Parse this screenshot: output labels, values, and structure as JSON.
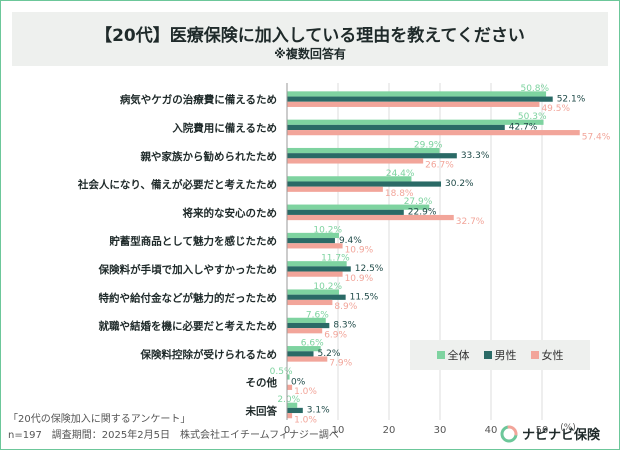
{
  "header": {
    "title": "【20代】医療保険に加入している理由を教えてください",
    "subtitle": "※複数回答有"
  },
  "legend_items": [
    {
      "label": "全体",
      "color": "#7ed3a0"
    },
    {
      "label": "男性",
      "color": "#2a6a66"
    },
    {
      "label": "女性",
      "color": "#f2a59a"
    }
  ],
  "footer": {
    "survey": "「20代の保険加入に関するアンケート」",
    "details": "n=197　調査期間：2025年2月5日　株式会社エイチームフィナジー調べ"
  },
  "logo": {
    "text": "ナビナビ保険"
  },
  "chart_data": {
    "type": "bar",
    "orientation": "horizontal",
    "categories": [
      "病気やケガの治療費に備えるため",
      "入院費用に備えるため",
      "親や家族から勧められたため",
      "社会人になり、備えが必要だと考えたため",
      "将来的な安心のため",
      "貯蓄型商品として魅力を感じたため",
      "保険料が手頃で加入しやすかったため",
      "特約や給付金などが魅力的だったため",
      "就職や結婚を機に必要だと考えたため",
      "保険料控除が受けられるため",
      "その他",
      "未回答"
    ],
    "series": [
      {
        "name": "全体",
        "color": "#7ed3a0",
        "values": [
          50.8,
          50.3,
          29.9,
          24.4,
          27.9,
          10.2,
          11.7,
          10.2,
          7.6,
          6.6,
          0.5,
          2.0
        ],
        "labels": [
          "50.8%",
          "50.3%",
          "29.9%",
          "24.4%",
          "27.9%",
          "10.2%",
          "11.7%",
          "10.2%",
          "7.6%",
          "6.6%",
          "0.5%",
          "2.0%"
        ]
      },
      {
        "name": "男性",
        "color": "#2a6a66",
        "values": [
          52.1,
          42.7,
          33.3,
          30.2,
          22.9,
          9.4,
          12.5,
          11.5,
          8.3,
          5.2,
          0,
          3.1
        ],
        "labels": [
          "52.1%",
          "42.7%",
          "33.3%",
          "30.2%",
          "22.9%",
          "9.4%",
          "12.5%",
          "11.5%",
          "8.3%",
          "5.2%",
          "0%",
          "3.1%"
        ]
      },
      {
        "name": "女性",
        "color": "#f2a59a",
        "values": [
          49.5,
          57.4,
          26.7,
          18.8,
          32.7,
          10.9,
          10.9,
          8.9,
          6.9,
          7.9,
          1.0,
          1.0
        ],
        "labels": [
          "49.5%",
          "57.4%",
          "26.7%",
          "18.8%",
          "32.7%",
          "10.9%",
          "10.9%",
          "8.9%",
          "6.9%",
          "7.9%",
          "1.0%",
          "1.0%"
        ]
      }
    ],
    "xlim": [
      0,
      60
    ],
    "xticks": [
      0,
      10,
      20,
      30,
      40,
      50
    ],
    "xtick_labels": [
      "0",
      "10",
      "20",
      "30",
      "40",
      "50"
    ],
    "unit_label": "(%)",
    "grid": true,
    "legend_position": "bottom-right"
  }
}
